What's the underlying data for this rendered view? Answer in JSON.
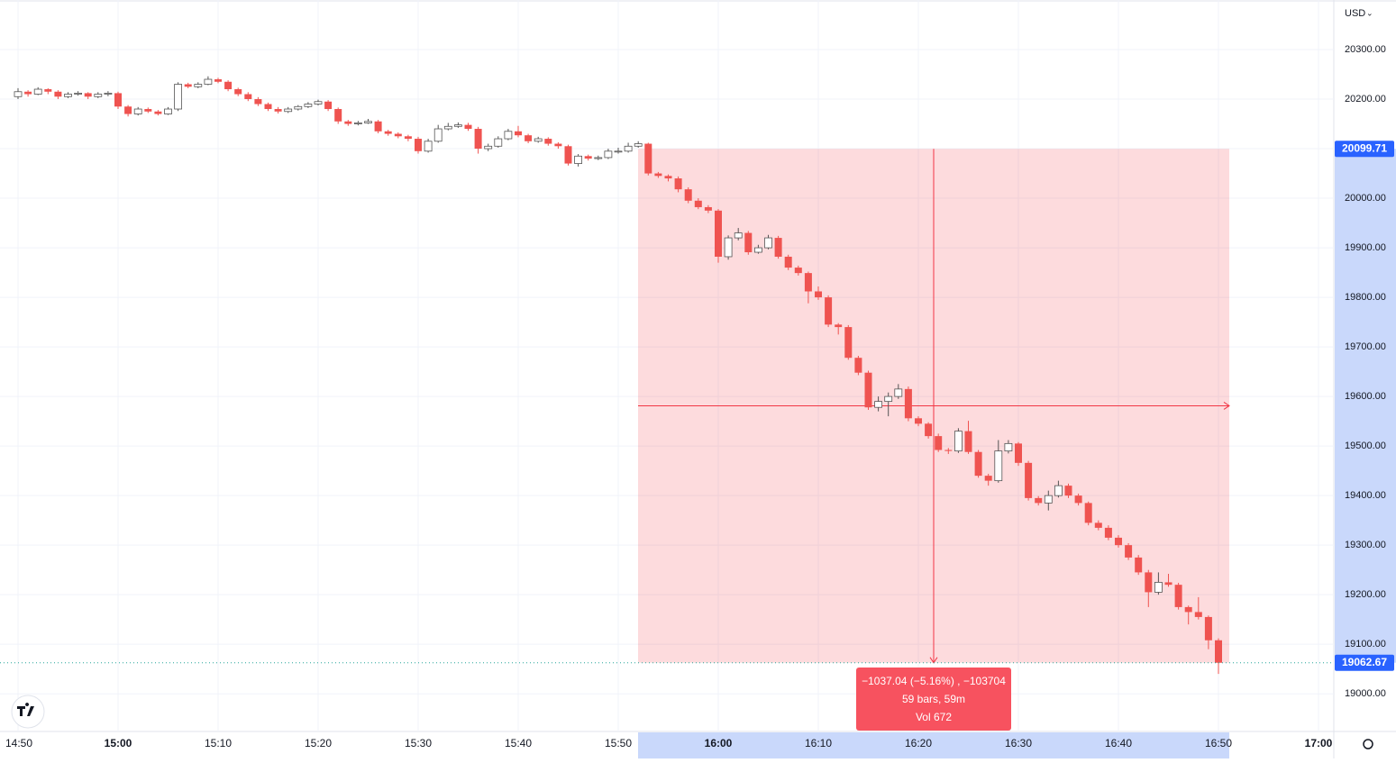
{
  "chart_data": {
    "type": "candlestick",
    "currency": "USD",
    "ylim": [
      18924,
      20400
    ],
    "yticks": [
      {
        "value": 19000,
        "label": "19000.00"
      },
      {
        "value": 19100,
        "label": "19100.00"
      },
      {
        "value": 19200,
        "label": "19200.00"
      },
      {
        "value": 19300,
        "label": "19300.00"
      },
      {
        "value": 19400,
        "label": "19400.00"
      },
      {
        "value": 19500,
        "label": "19500.00"
      },
      {
        "value": 19600,
        "label": "19600.00"
      },
      {
        "value": 19700,
        "label": "19700.00"
      },
      {
        "value": 19800,
        "label": "19800.00"
      },
      {
        "value": 19900,
        "label": "19900.00"
      },
      {
        "value": 20000,
        "label": "20000.00"
      },
      {
        "value": 20100,
        "label": "20100.00"
      },
      {
        "value": 20200,
        "label": "20200.00"
      },
      {
        "value": 20300,
        "label": "20300.00"
      }
    ],
    "xticks": [
      "14:50",
      "15:00",
      "15:10",
      "15:20",
      "15:30",
      "15:40",
      "15:50",
      "16:00",
      "16:10",
      "16:20",
      "16:30",
      "16:40",
      "16:50",
      "17:00"
    ],
    "grid": true,
    "up_color": "#ffffff",
    "down_color": "#ef5350",
    "ohlc": [
      [
        20205,
        20222,
        20200,
        20215
      ],
      [
        20215,
        20218,
        20205,
        20210
      ],
      [
        20210,
        20224,
        20208,
        20220
      ],
      [
        20220,
        20222,
        20210,
        20215
      ],
      [
        20215,
        20218,
        20200,
        20205
      ],
      [
        20205,
        20214,
        20202,
        20210
      ],
      [
        20210,
        20216,
        20207,
        20212
      ],
      [
        20212,
        20214,
        20200,
        20205
      ],
      [
        20205,
        20214,
        20202,
        20210
      ],
      [
        20210,
        20216,
        20206,
        20212
      ],
      [
        20212,
        20215,
        20180,
        20185
      ],
      [
        20185,
        20188,
        20165,
        20170
      ],
      [
        20170,
        20184,
        20167,
        20180
      ],
      [
        20180,
        20183,
        20172,
        20175
      ],
      [
        20175,
        20178,
        20167,
        20170
      ],
      [
        20170,
        20184,
        20168,
        20180
      ],
      [
        20180,
        20234,
        20176,
        20230
      ],
      [
        20230,
        20233,
        20222,
        20225
      ],
      [
        20225,
        20234,
        20222,
        20230
      ],
      [
        20230,
        20246,
        20228,
        20240
      ],
      [
        20240,
        20243,
        20232,
        20235
      ],
      [
        20235,
        20238,
        20216,
        20220
      ],
      [
        20220,
        20223,
        20206,
        20210
      ],
      [
        20210,
        20214,
        20196,
        20200
      ],
      [
        20200,
        20204,
        20186,
        20190
      ],
      [
        20190,
        20193,
        20176,
        20180
      ],
      [
        20180,
        20184,
        20171,
        20175
      ],
      [
        20175,
        20184,
        20172,
        20180
      ],
      [
        20180,
        20188,
        20177,
        20185
      ],
      [
        20185,
        20194,
        20182,
        20190
      ],
      [
        20190,
        20199,
        20187,
        20195
      ],
      [
        20195,
        20198,
        20176,
        20180
      ],
      [
        20180,
        20183,
        20150,
        20155
      ],
      [
        20155,
        20158,
        20146,
        20150
      ],
      [
        20150,
        20156,
        20147,
        20152
      ],
      [
        20152,
        20160,
        20150,
        20155
      ],
      [
        20155,
        20158,
        20131,
        20135
      ],
      [
        20135,
        20138,
        20126,
        20130
      ],
      [
        20130,
        20133,
        20121,
        20125
      ],
      [
        20125,
        20128,
        20115,
        20120
      ],
      [
        20120,
        20124,
        20090,
        20095
      ],
      [
        20095,
        20120,
        20092,
        20115
      ],
      [
        20115,
        20148,
        20112,
        20140
      ],
      [
        20140,
        20152,
        20137,
        20145
      ],
      [
        20145,
        20153,
        20142,
        20148
      ],
      [
        20148,
        20152,
        20136,
        20140
      ],
      [
        20140,
        20144,
        20090,
        20100
      ],
      [
        20100,
        20110,
        20095,
        20105
      ],
      [
        20105,
        20125,
        20102,
        20120
      ],
      [
        20120,
        20140,
        20117,
        20135
      ],
      [
        20135,
        20146,
        20123,
        20127
      ],
      [
        20127,
        20130,
        20111,
        20115
      ],
      [
        20115,
        20124,
        20112,
        20120
      ],
      [
        20120,
        20123,
        20106,
        20110
      ],
      [
        20110,
        20113,
        20100,
        20105
      ],
      [
        20105,
        20108,
        20066,
        20070
      ],
      [
        20070,
        20089,
        20064,
        20085
      ],
      [
        20085,
        20088,
        20076,
        20080
      ],
      [
        20080,
        20086,
        20077,
        20082
      ],
      [
        20082,
        20100,
        20079,
        20095
      ],
      [
        20095,
        20102,
        20090,
        20095
      ],
      [
        20095,
        20112,
        20092,
        20105
      ],
      [
        20105,
        20115,
        20102,
        20110
      ],
      [
        20110,
        20112,
        20046,
        20050
      ],
      [
        20050,
        20053,
        20041,
        20045
      ],
      [
        20045,
        20048,
        20034,
        20040
      ],
      [
        20040,
        20044,
        20012,
        20018
      ],
      [
        20018,
        20022,
        19990,
        19995
      ],
      [
        19995,
        20000,
        19978,
        19982
      ],
      [
        19982,
        19986,
        19970,
        19975
      ],
      [
        19975,
        19978,
        19870,
        19882
      ],
      [
        19882,
        19925,
        19876,
        19920
      ],
      [
        19920,
        19940,
        19915,
        19930
      ],
      [
        19930,
        19934,
        19886,
        19891
      ],
      [
        19891,
        19906,
        19888,
        19900
      ],
      [
        19900,
        19926,
        19897,
        19920
      ],
      [
        19920,
        19924,
        19878,
        19882
      ],
      [
        19882,
        19886,
        19855,
        19860
      ],
      [
        19860,
        19864,
        19844,
        19849
      ],
      [
        19849,
        19852,
        19788,
        19812
      ],
      [
        19812,
        19822,
        19795,
        19800
      ],
      [
        19800,
        19804,
        19740,
        19745
      ],
      [
        19745,
        19748,
        19725,
        19740
      ],
      [
        19740,
        19744,
        19674,
        19678
      ],
      [
        19678,
        19682,
        19643,
        19648
      ],
      [
        19648,
        19652,
        19573,
        19578
      ],
      [
        19578,
        19600,
        19570,
        19590
      ],
      [
        19590,
        19608,
        19560,
        19600
      ],
      [
        19600,
        19625,
        19595,
        19615
      ],
      [
        19615,
        19620,
        19550,
        19556
      ],
      [
        19556,
        19560,
        19540,
        19545
      ],
      [
        19545,
        19548,
        19515,
        19520
      ],
      [
        19520,
        19525,
        19488,
        19492
      ],
      [
        19492,
        19496,
        19484,
        19490
      ],
      [
        19490,
        19536,
        19486,
        19530
      ],
      [
        19530,
        19551,
        19484,
        19488
      ],
      [
        19488,
        19492,
        19436,
        19440
      ],
      [
        19440,
        19444,
        19420,
        19430
      ],
      [
        19430,
        19512,
        19426,
        19490
      ],
      [
        19490,
        19512,
        19485,
        19505
      ],
      [
        19505,
        19508,
        19460,
        19466
      ],
      [
        19466,
        19470,
        19390,
        19395
      ],
      [
        19395,
        19399,
        19380,
        19385
      ],
      [
        19385,
        19410,
        19370,
        19400
      ],
      [
        19400,
        19430,
        19396,
        19420
      ],
      [
        19420,
        19424,
        19395,
        19400
      ],
      [
        19400,
        19404,
        19380,
        19385
      ],
      [
        19385,
        19388,
        19340,
        19345
      ],
      [
        19345,
        19350,
        19330,
        19335
      ],
      [
        19335,
        19340,
        19310,
        19315
      ],
      [
        19315,
        19320,
        19295,
        19300
      ],
      [
        19300,
        19304,
        19270,
        19275
      ],
      [
        19275,
        19280,
        19240,
        19245
      ],
      [
        19245,
        19250,
        19175,
        19205
      ],
      [
        19205,
        19245,
        19200,
        19225
      ],
      [
        19225,
        19242,
        19216,
        19220
      ],
      [
        19220,
        19224,
        19170,
        19175
      ],
      [
        19175,
        19178,
        19140,
        19165
      ],
      [
        19165,
        19195,
        19150,
        19155
      ],
      [
        19155,
        19158,
        19090,
        19108
      ],
      [
        19108,
        19112,
        19040,
        19062.67
      ]
    ],
    "price_labels": [
      20099.71,
      19062.67
    ],
    "measure": {
      "from": 20099.71,
      "to": 19062.67,
      "lines": [
        "−1037.04 (−5.16%) , −103704",
        "59 bars, 59m",
        "Vol 672"
      ]
    }
  }
}
